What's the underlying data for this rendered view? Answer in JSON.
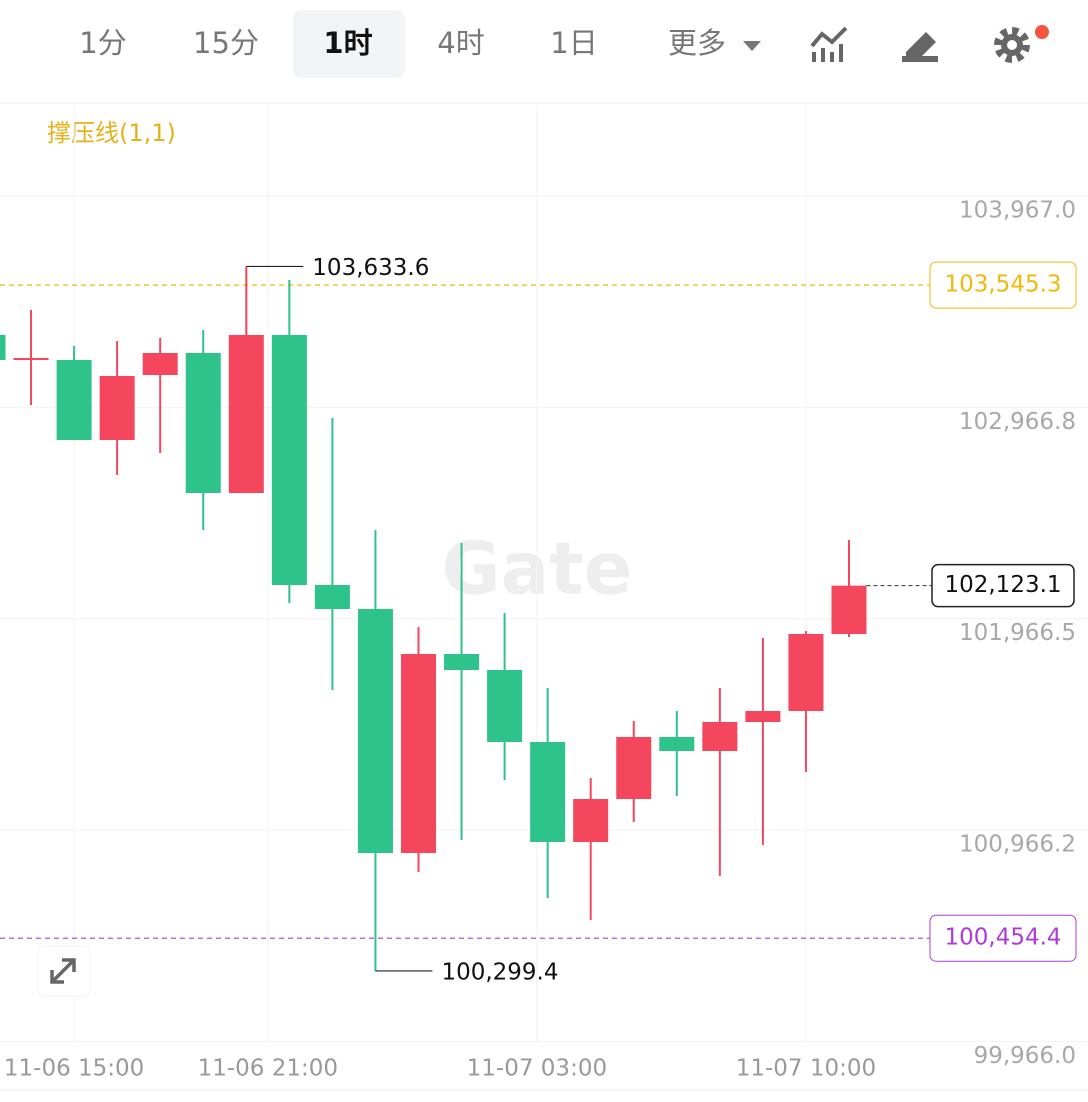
{
  "toolbar": {
    "tabs": [
      "1分",
      "15分",
      "1时",
      "4时",
      "1日",
      "更多"
    ],
    "active": 2
  },
  "chart_data": {
    "type": "candlestick",
    "indicator": "撑压线(1,1)",
    "watermark": "Gate",
    "up_color": "#f4465c",
    "down_color": "#2dc38a",
    "open": [
      103309.2,
      103190.9,
      103190.9,
      102812.2,
      103119.9,
      103224.0,
      102561.4,
      103309.2,
      102126.0,
      102012.4,
      100857.7,
      101799.5,
      101723.7,
      101383.0,
      100909.7,
      101113.2,
      101406.7,
      101340.4,
      101477.7,
      101529.7,
      101894.1
    ],
    "high": [
      103309.2,
      103427.5,
      103257.1,
      103280.8,
      103295.0,
      103332.8,
      103633.6,
      103569.4,
      102916.4,
      102386.3,
      101927.2,
      102324.8,
      101993.5,
      101638.6,
      101212.6,
      101482.4,
      101529.7,
      101638.6,
      101875.2,
      101908.3,
      102339.0
    ],
    "low": [
      103190.9,
      102977.9,
      102812.2,
      102646.6,
      102750.7,
      102386.3,
      102561.4,
      102040.8,
      101629.1,
      100299.4,
      100767.8,
      100919.2,
      101203.2,
      100644.7,
      100540.6,
      101004.4,
      101127.4,
      100748.8,
      100895.5,
      101241.0,
      101879.9
    ],
    "close": [
      103190.9,
      103200.3,
      102812.2,
      103115.1,
      103224.0,
      102561.4,
      103309.2,
      102126.0,
      102012.4,
      100857.7,
      101799.5,
      101723.7,
      101383.0,
      100909.7,
      101113.2,
      101406.7,
      101340.4,
      101477.7,
      101529.7,
      101894.1,
      102123.1
    ],
    "ylim": [
      99963.2,
      104397.7
    ],
    "yticks": [
      {
        "value": 103967.0,
        "label": "103,967.0"
      },
      {
        "value": 102966.8,
        "label": "102,966.8"
      },
      {
        "value": 101966.5,
        "label": "101,966.5"
      },
      {
        "value": 100966.2,
        "label": "100,966.2"
      },
      {
        "value": 99966.0,
        "label": "99,966.0"
      }
    ],
    "xticks": [
      {
        "value": 2,
        "label": "11-06 15:00"
      },
      {
        "value": 6.5,
        "label": "11-06 21:00"
      },
      {
        "value": 12.75,
        "label": "11-07 03:00"
      },
      {
        "value": 19,
        "label": "11-07 10:00"
      }
    ],
    "price_lines": [
      {
        "value": 103545.3,
        "label": "103,545.3",
        "color": "#f0b90b"
      },
      {
        "value": 100454.4,
        "label": "100,454.4",
        "color": "#b03ad8"
      }
    ],
    "last_price": {
      "value": 102123.1,
      "label": "102,123.1"
    },
    "extremes": [
      {
        "value": 103633.6,
        "label": "103,633.6",
        "index": 6
      },
      {
        "value": 100299.4,
        "label": "100,299.4",
        "index": 9
      }
    ]
  }
}
